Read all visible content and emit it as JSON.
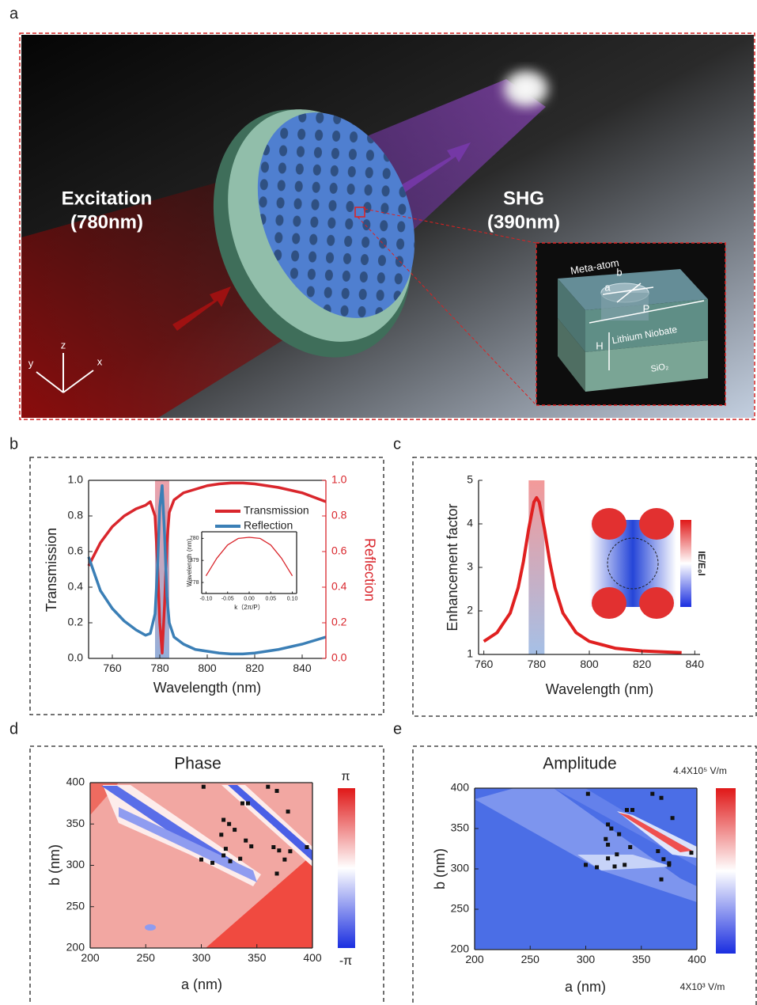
{
  "panel_labels": [
    "a",
    "b",
    "c",
    "d",
    "e"
  ],
  "schematic": {
    "excitation": [
      "Excitation",
      "(780nm)"
    ],
    "shg": [
      "SHG",
      "(390nm)"
    ],
    "meta_atom": "Meta-atom",
    "dims": [
      "a",
      "b",
      "P",
      "H"
    ],
    "layers": [
      "Lithium Niobate",
      "SiO₂"
    ],
    "axes": [
      "z",
      "y",
      "x"
    ]
  },
  "chart_data": [
    {
      "type": "line",
      "xlabel": "Wavelength (nm)",
      "ylabel": "Transmission",
      "y2label": "Reflection",
      "x": [
        750,
        755,
        760,
        765,
        770,
        774,
        776,
        778,
        779,
        780,
        781,
        782,
        783,
        784,
        786,
        790,
        795,
        800,
        805,
        810,
        815,
        820,
        830,
        840,
        850
      ],
      "series": [
        {
          "name": "Transmission",
          "color": "#d9262c",
          "values": [
            0.52,
            0.65,
            0.74,
            0.8,
            0.84,
            0.86,
            0.88,
            0.8,
            0.55,
            0.2,
            0.03,
            0.3,
            0.65,
            0.82,
            0.89,
            0.93,
            0.95,
            0.97,
            0.98,
            0.985,
            0.985,
            0.98,
            0.96,
            0.93,
            0.88
          ]
        },
        {
          "name": "Reflection",
          "color": "#3b7fb6",
          "axis": "y2",
          "values": [
            0.57,
            0.38,
            0.28,
            0.21,
            0.16,
            0.13,
            0.14,
            0.25,
            0.5,
            0.85,
            0.97,
            0.7,
            0.35,
            0.2,
            0.12,
            0.08,
            0.05,
            0.04,
            0.03,
            0.025,
            0.025,
            0.03,
            0.05,
            0.08,
            0.12
          ]
        }
      ],
      "xlim": [
        750,
        850
      ],
      "xticks": [
        760,
        780,
        800,
        820,
        840
      ],
      "ylim": [
        0,
        1
      ],
      "yticks": [
        {
          "value": 0,
          "label": "0.0"
        },
        0.2,
        0.4,
        0.6,
        0.8,
        {
          "value": 1,
          "label": "1.0"
        }
      ],
      "y2lim": [
        0,
        1
      ],
      "y2ticks": [
        {
          "value": 0,
          "label": "0.0"
        },
        0.2,
        0.4,
        0.6,
        0.8,
        {
          "value": 1,
          "label": "1.0"
        }
      ],
      "y2color": "#d9262c",
      "highlight": [
        778,
        784
      ]
    },
    {
      "type": "line",
      "xlabel": "k（2π/P）",
      "ylabel": "Wavelength (nm)",
      "x": [
        -0.1,
        -0.075,
        -0.05,
        -0.025,
        0,
        0.025,
        0.05,
        0.075,
        0.1
      ],
      "values": [
        778.3,
        779.1,
        779.7,
        780.0,
        780.05,
        780.0,
        779.7,
        779.1,
        778.3
      ],
      "color": "#d9262c",
      "xlim": [
        -0.11,
        0.11
      ],
      "xticks": [
        {
          "value": -0.1,
          "label": "-0.10"
        },
        {
          "value": -0.05,
          "label": "-0.05"
        },
        {
          "value": 0,
          "label": "0.00"
        },
        {
          "value": 0.05,
          "label": "0.05"
        },
        {
          "value": 0.1,
          "label": "0.10"
        }
      ],
      "ylim": [
        777.5,
        780.3
      ],
      "yticks": [
        778,
        779,
        780
      ]
    },
    {
      "type": "line",
      "xlabel": "Wavelength (nm)",
      "ylabel": "Enhancement factor",
      "x": [
        760,
        765,
        770,
        773,
        775,
        777,
        779,
        780,
        781,
        783,
        785,
        787,
        790,
        795,
        800,
        810,
        820,
        835
      ],
      "values": [
        1.3,
        1.5,
        1.95,
        2.53,
        3.13,
        3.88,
        4.5,
        4.6,
        4.5,
        3.88,
        3.13,
        2.53,
        1.95,
        1.5,
        1.3,
        1.14,
        1.08,
        1.04
      ],
      "color": "#e02020",
      "xlim": [
        758,
        842
      ],
      "xticks": [
        760,
        780,
        800,
        820,
        840
      ],
      "ylim": [
        1,
        5
      ],
      "yticks": [
        1,
        2,
        3,
        4,
        5
      ],
      "highlight": [
        777,
        783
      ],
      "inset_label": "IE/E₀I"
    },
    {
      "type": "scatter",
      "title": "Phase",
      "xlabel": "a (nm)",
      "ylabel": "b (nm)",
      "x": [
        302,
        360,
        368,
        342,
        337,
        378,
        320,
        325,
        330,
        318,
        340,
        345,
        395,
        365,
        322,
        370,
        380,
        320,
        335,
        375,
        300,
        310,
        326,
        368
      ],
      "values": [
        395,
        395,
        390,
        375,
        375,
        365,
        355,
        350,
        343,
        337,
        330,
        323,
        322,
        322,
        320,
        318,
        317,
        312,
        308,
        307,
        307,
        303,
        305,
        290
      ],
      "color": "#111111",
      "xlim": [
        200,
        400
      ],
      "xticks": [
        200,
        250,
        300,
        350,
        400
      ],
      "ylim": [
        200,
        400
      ],
      "yticks": [
        200,
        250,
        300,
        350,
        400
      ],
      "colorbar_labels": [
        "π",
        "-π"
      ]
    },
    {
      "type": "scatter",
      "title": "Amplitude",
      "xlabel": "a (nm)",
      "ylabel": "b (nm)",
      "x": [
        302,
        360,
        368,
        342,
        337,
        378,
        320,
        323,
        330,
        318,
        320,
        340,
        395,
        365,
        328,
        370,
        375,
        320,
        335,
        375,
        300,
        310,
        326,
        368
      ],
      "values": [
        393,
        393,
        388,
        373,
        373,
        363,
        355,
        350,
        343,
        337,
        330,
        327,
        320,
        322,
        318,
        312,
        307,
        313,
        305,
        305,
        305,
        302,
        303,
        287
      ],
      "color": "#111111",
      "xlim": [
        200,
        400
      ],
      "xticks": [
        200,
        250,
        300,
        350,
        400
      ],
      "ylim": [
        200,
        400
      ],
      "yticks": [
        200,
        250,
        300,
        350,
        400
      ],
      "colorbar_labels": [
        "4.4X10⁵ V/m",
        "4X10³ V/m"
      ]
    }
  ]
}
